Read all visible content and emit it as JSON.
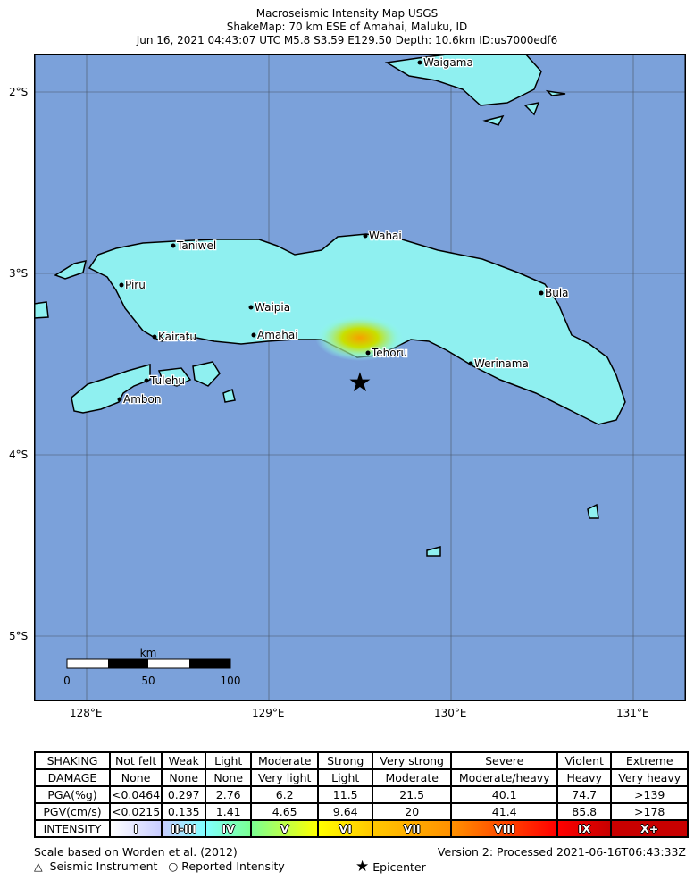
{
  "header": {
    "title": "Macroseismic Intensity Map USGS",
    "subtitle": "ShakeMap: 70 km ESE of Amahai, Maluku, ID",
    "event": "Jun 16, 2021 04:43:07 UTC M5.8 S3.59 E129.50 Depth: 10.6km ID:us7000edf6"
  },
  "map": {
    "ocean_color": "#7ba1da",
    "land_color": "#8ff5f5",
    "lat_labels": [
      "2°S",
      "3°S",
      "4°S",
      "5°S"
    ],
    "lon_labels": [
      "128°E",
      "129°E",
      "130°E",
      "131°E"
    ],
    "cities": [
      {
        "name": "Waigama"
      },
      {
        "name": "Taniwel"
      },
      {
        "name": "Wahai"
      },
      {
        "name": "Piru"
      },
      {
        "name": "Bula"
      },
      {
        "name": "Waipia"
      },
      {
        "name": "Kairatu"
      },
      {
        "name": "Amahai"
      },
      {
        "name": "Tehoru"
      },
      {
        "name": "Werinama"
      },
      {
        "name": "Tulehu"
      },
      {
        "name": "Ambon"
      }
    ],
    "epicenter_icon": "star-icon",
    "scale": {
      "unit": "km",
      "labels": [
        "0",
        "50",
        "100"
      ]
    }
  },
  "legend": {
    "rows": [
      [
        "SHAKING",
        "Not felt",
        "Weak",
        "Light",
        "Moderate",
        "Strong",
        "Very strong",
        "Severe",
        "Violent",
        "Extreme"
      ],
      [
        "DAMAGE",
        "None",
        "None",
        "None",
        "Very light",
        "Light",
        "Moderate",
        "Moderate/heavy",
        "Heavy",
        "Very heavy"
      ],
      [
        "PGA(%g)",
        "<0.0464",
        "0.297",
        "2.76",
        "6.2",
        "11.5",
        "21.5",
        "40.1",
        "74.7",
        ">139"
      ],
      [
        "PGV(cm/s)",
        "<0.0215",
        "0.135",
        "1.41",
        "4.65",
        "9.64",
        "20",
        "41.4",
        "85.8",
        ">178"
      ]
    ],
    "intensity": [
      "INTENSITY",
      "I",
      "II-III",
      "IV",
      "V",
      "VI",
      "VII",
      "VIII",
      "IX",
      "X+"
    ],
    "intensity_colors": [
      "#ffffff",
      "#c8ccff",
      "#80ffff",
      "#7aff93",
      "#ffff00",
      "#ffc800",
      "#ff9100",
      "#ff0000",
      "#c80000"
    ],
    "scale_note": "Scale based on Worden et al. (2012)",
    "version": "Version 2: Processed 2021-06-16T06:43:33Z",
    "seismic_instrument": "Seismic Instrument",
    "reported_intensity": "Reported Intensity",
    "epicenter": "Epicenter"
  }
}
